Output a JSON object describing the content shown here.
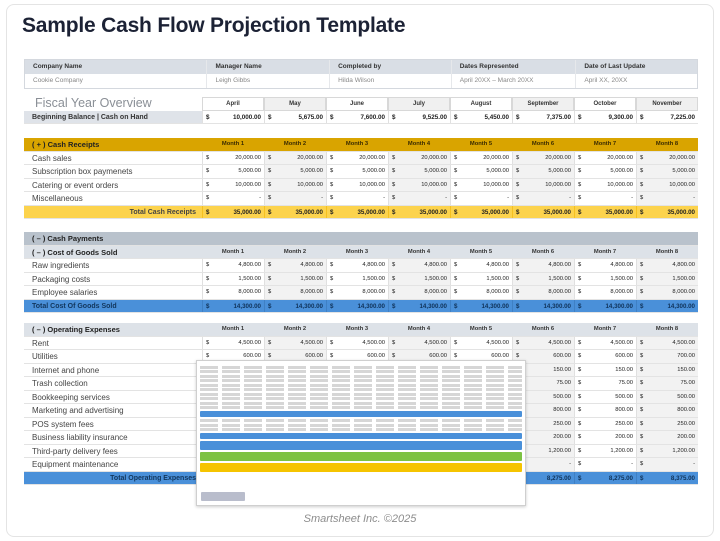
{
  "title": "Sample Cash Flow Projection Template",
  "info": {
    "headers": [
      "Company Name",
      "Manager Name",
      "Completed by",
      "Dates Represented",
      "Date of Last Update"
    ],
    "values": [
      "Cookie Company",
      "Leigh Gibbs",
      "Hilda Wilson",
      "April 20XX – March 20XX",
      "April XX, 20XX"
    ]
  },
  "overview": {
    "title": "Fiscal Year Overview",
    "months": [
      "April",
      "May",
      "June",
      "July",
      "August",
      "September",
      "October",
      "November"
    ],
    "beginning_label": "Beginning Balance | Cash on Hand",
    "currency": "$",
    "beginning_values": [
      "10,000.00",
      "5,675.00",
      "7,600.00",
      "9,525.00",
      "5,450.00",
      "7,375.00",
      "9,300.00",
      "7,225.00"
    ]
  },
  "month_headers": [
    "Month 1",
    "Month 2",
    "Month 3",
    "Month 4",
    "Month 5",
    "Month 6",
    "Month 7",
    "Month 8"
  ],
  "receipts": {
    "title": "( + )  Cash Receipts",
    "rows": [
      {
        "label": "Cash sales",
        "values": [
          "20,000.00",
          "20,000.00",
          "20,000.00",
          "20,000.00",
          "20,000.00",
          "20,000.00",
          "20,000.00",
          "20,000.00"
        ]
      },
      {
        "label": "Subscription box paymenets",
        "values": [
          "5,000.00",
          "5,000.00",
          "5,000.00",
          "5,000.00",
          "5,000.00",
          "5,000.00",
          "5,000.00",
          "5,000.00"
        ]
      },
      {
        "label": "Catering or event orders",
        "values": [
          "10,000.00",
          "10,000.00",
          "10,000.00",
          "10,000.00",
          "10,000.00",
          "10,000.00",
          "10,000.00",
          "10,000.00"
        ]
      },
      {
        "label": "Miscellaneous",
        "values": [
          "-",
          "-",
          "-",
          "-",
          "-",
          "-",
          "-",
          "-"
        ]
      }
    ],
    "total_label": "Total Cash Receipts",
    "total_values": [
      "35,000.00",
      "35,000.00",
      "35,000.00",
      "35,000.00",
      "35,000.00",
      "35,000.00",
      "35,000.00",
      "35,000.00"
    ]
  },
  "payments": {
    "title": "( – )  Cash Payments",
    "cogs": {
      "title": "( – )  Cost of Goods Sold",
      "rows": [
        {
          "label": "Raw ingredients",
          "values": [
            "4,800.00",
            "4,800.00",
            "4,800.00",
            "4,800.00",
            "4,800.00",
            "4,800.00",
            "4,800.00",
            "4,800.00"
          ]
        },
        {
          "label": "Packaging costs",
          "values": [
            "1,500.00",
            "1,500.00",
            "1,500.00",
            "1,500.00",
            "1,500.00",
            "1,500.00",
            "1,500.00",
            "1,500.00"
          ]
        },
        {
          "label": "Employee salaries",
          "values": [
            "8,000.00",
            "8,000.00",
            "8,000.00",
            "8,000.00",
            "8,000.00",
            "8,000.00",
            "8,000.00",
            "8,000.00"
          ]
        }
      ],
      "total_label": "Total Cost Of Goods Sold",
      "total_values": [
        "14,300.00",
        "14,300.00",
        "14,300.00",
        "14,300.00",
        "14,300.00",
        "14,300.00",
        "14,300.00",
        "14,300.00"
      ]
    },
    "opex": {
      "title": "( – )  Operating Expenses",
      "rows": [
        {
          "label": "Rent",
          "values": [
            "4,500.00",
            "4,500.00",
            "4,500.00",
            "4,500.00",
            "4,500.00",
            "4,500.00",
            "4,500.00",
            "4,500.00"
          ]
        },
        {
          "label": "Utilities",
          "values": [
            "600.00",
            "600.00",
            "600.00",
            "600.00",
            "600.00",
            "600.00",
            "600.00",
            "700.00"
          ]
        },
        {
          "label": "Internet and phone",
          "values": [
            "",
            "",
            "",
            "",
            "",
            "150.00",
            "150.00",
            "150.00"
          ]
        },
        {
          "label": "Trash collection",
          "values": [
            "",
            "",
            "",
            "",
            "",
            "75.00",
            "75.00",
            "75.00"
          ]
        },
        {
          "label": "Bookkeeping services",
          "values": [
            "",
            "",
            "",
            "",
            "",
            "500.00",
            "500.00",
            "500.00"
          ]
        },
        {
          "label": "Marketing and advertising",
          "values": [
            "",
            "",
            "",
            "",
            "",
            "800.00",
            "800.00",
            "800.00"
          ]
        },
        {
          "label": "POS system fees",
          "values": [
            "",
            "",
            "",
            "",
            "",
            "250.00",
            "250.00",
            "250.00"
          ]
        },
        {
          "label": "Business liability insurance",
          "values": [
            "",
            "",
            "",
            "",
            "",
            "200.00",
            "200.00",
            "200.00"
          ]
        },
        {
          "label": "Third-party delivery fees",
          "values": [
            "",
            "",
            "",
            "",
            "",
            "1,200.00",
            "1,200.00",
            "1,200.00"
          ]
        },
        {
          "label": "Equipment maintenance",
          "values": [
            "",
            "",
            "",
            "",
            "",
            "-",
            "-",
            "-"
          ]
        }
      ],
      "total_label": "Total Operating Expenses",
      "total_values": [
        "",
        "",
        "",
        "",
        "",
        "8,275.00",
        "8,275.00",
        "8,375.00"
      ]
    }
  },
  "footer": "Smartsheet Inc. ©2025"
}
